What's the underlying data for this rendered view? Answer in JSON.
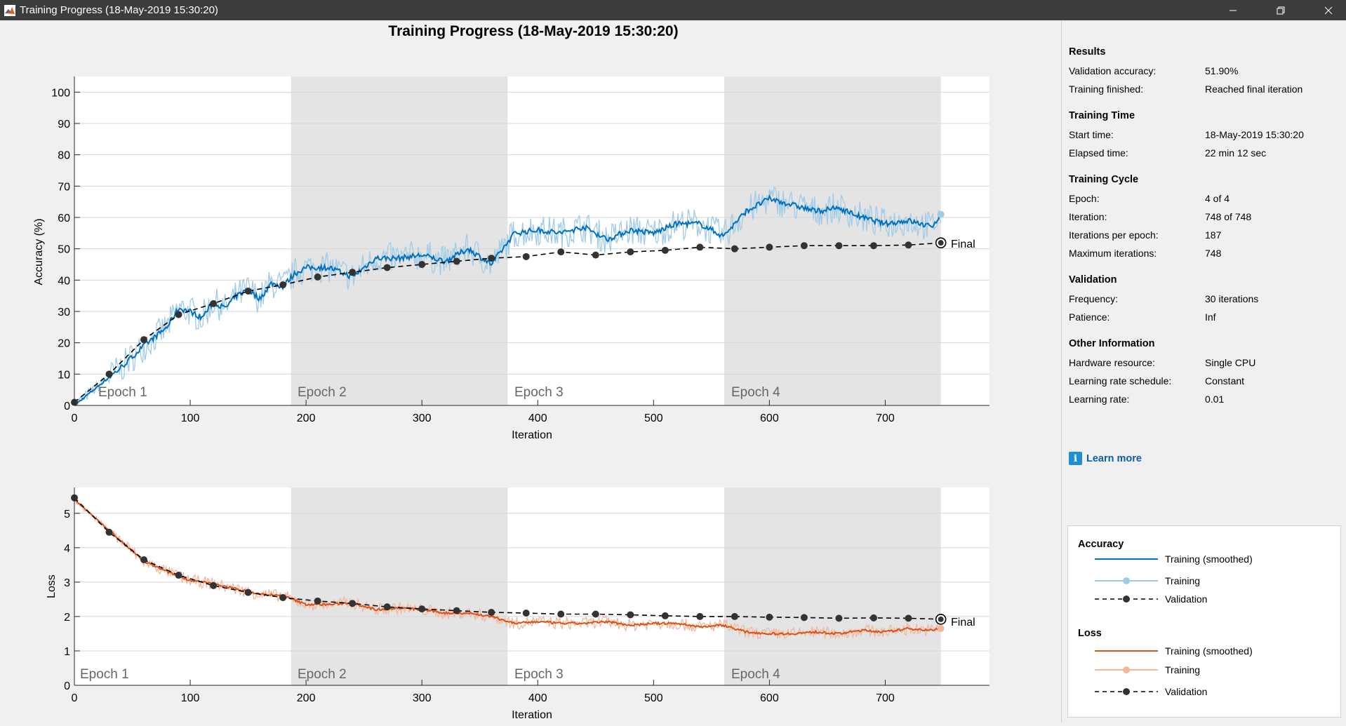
{
  "window": {
    "title": "Training Progress (18-May-2019 15:30:20)",
    "icon": "matlab-logo-icon"
  },
  "figure": {
    "title": "Training Progress (18-May-2019 15:30:20)"
  },
  "accuracy_plot": {
    "ylabel": "Accuracy (%)",
    "xlabel": "Iteration",
    "yticks": [
      "0",
      "10",
      "20",
      "30",
      "40",
      "50",
      "60",
      "70",
      "80",
      "90",
      "100"
    ],
    "xticks": [
      "0",
      "100",
      "200",
      "300",
      "400",
      "500",
      "600",
      "700"
    ],
    "epochs": [
      "Epoch 1",
      "Epoch 2",
      "Epoch 3",
      "Epoch 4"
    ],
    "final_label": "Final"
  },
  "loss_plot": {
    "ylabel": "Loss",
    "xlabel": "Iteration",
    "yticks": [
      "0",
      "1",
      "2",
      "3",
      "4",
      "5"
    ],
    "xticks": [
      "0",
      "100",
      "200",
      "300",
      "400",
      "500",
      "600",
      "700"
    ],
    "epochs": [
      "Epoch 1",
      "Epoch 2",
      "Epoch 3",
      "Epoch 4"
    ],
    "final_label": "Final"
  },
  "chart_data": [
    {
      "type": "line",
      "ylabel": "Accuracy (%)",
      "xlabel": "Iteration",
      "xlim": [
        0,
        790
      ],
      "ylim": [
        0,
        105
      ],
      "epoch_boundaries": [
        0,
        187,
        374,
        561,
        748
      ],
      "series": [
        {
          "name": "Validation",
          "x": [
            0,
            30,
            60,
            90,
            120,
            150,
            180,
            210,
            240,
            270,
            300,
            330,
            360,
            390,
            420,
            450,
            480,
            510,
            540,
            570,
            600,
            630,
            660,
            690,
            720,
            748
          ],
          "values": [
            1,
            10,
            21,
            29,
            32.5,
            36.5,
            38.5,
            41,
            42.5,
            44,
            45,
            46,
            47,
            47.5,
            49,
            48,
            49,
            49.5,
            50.5,
            50,
            50.5,
            51,
            51,
            51,
            51.2,
            51.9
          ]
        },
        {
          "name": "Training (smoothed)",
          "x": [
            0,
            20,
            40,
            60,
            80,
            90,
            100,
            110,
            120,
            130,
            140,
            150,
            160,
            170,
            180,
            190,
            200,
            220,
            240,
            260,
            280,
            300,
            320,
            340,
            360,
            380,
            400,
            420,
            440,
            460,
            480,
            500,
            520,
            540,
            560,
            570,
            580,
            600,
            620,
            640,
            660,
            680,
            700,
            720,
            740,
            748
          ],
          "values": [
            0,
            6,
            12,
            19,
            25,
            31,
            30,
            28,
            33,
            31,
            35,
            37,
            34,
            39,
            38,
            42,
            44,
            44,
            41,
            47,
            47,
            48,
            46,
            50,
            45,
            55,
            56,
            55,
            57,
            53,
            56,
            55,
            58,
            58,
            54,
            58,
            62,
            66,
            64,
            62,
            63,
            60,
            58,
            59,
            57,
            61
          ]
        }
      ]
    },
    {
      "type": "line",
      "ylabel": "Loss",
      "xlabel": "Iteration",
      "xlim": [
        0,
        790
      ],
      "ylim": [
        0,
        5.75
      ],
      "epoch_boundaries": [
        0,
        187,
        374,
        561,
        748
      ],
      "series": [
        {
          "name": "Validation",
          "x": [
            0,
            30,
            60,
            90,
            120,
            150,
            180,
            210,
            240,
            270,
            300,
            330,
            360,
            390,
            420,
            450,
            480,
            510,
            540,
            570,
            600,
            630,
            660,
            690,
            720,
            748
          ],
          "values": [
            5.45,
            4.45,
            3.65,
            3.2,
            2.9,
            2.7,
            2.55,
            2.45,
            2.38,
            2.28,
            2.22,
            2.17,
            2.12,
            2.1,
            2.07,
            2.07,
            2.05,
            2.02,
            2.0,
            2.0,
            1.98,
            1.97,
            1.95,
            1.96,
            1.95,
            1.92
          ]
        },
        {
          "name": "Training (smoothed)",
          "x": [
            0,
            20,
            40,
            60,
            80,
            100,
            120,
            140,
            160,
            180,
            200,
            220,
            240,
            260,
            280,
            300,
            320,
            340,
            360,
            380,
            400,
            420,
            440,
            460,
            480,
            500,
            520,
            540,
            560,
            580,
            600,
            620,
            640,
            660,
            680,
            700,
            720,
            740,
            748
          ],
          "values": [
            5.4,
            4.8,
            4.2,
            3.6,
            3.3,
            3.05,
            2.95,
            2.8,
            2.65,
            2.6,
            2.35,
            2.35,
            2.4,
            2.2,
            2.25,
            2.2,
            2.1,
            2.1,
            2.0,
            1.8,
            1.85,
            1.8,
            1.8,
            1.85,
            1.75,
            1.8,
            1.8,
            1.7,
            1.75,
            1.55,
            1.5,
            1.5,
            1.55,
            1.5,
            1.6,
            1.55,
            1.65,
            1.6,
            1.65
          ]
        }
      ]
    }
  ],
  "side": {
    "results": {
      "head": "Results",
      "rows": [
        {
          "label": "Validation accuracy:",
          "value": "51.90%"
        },
        {
          "label": "Training finished:",
          "value": "Reached final iteration"
        }
      ]
    },
    "time": {
      "head": "Training Time",
      "rows": [
        {
          "label": "Start time:",
          "value": "18-May-2019 15:30:20"
        },
        {
          "label": "Elapsed time:",
          "value": "22 min 12 sec"
        }
      ]
    },
    "cycle": {
      "head": "Training Cycle",
      "rows": [
        {
          "label": "Epoch:",
          "value": "4 of 4"
        },
        {
          "label": "Iteration:",
          "value": "748 of 748"
        },
        {
          "label": "Iterations per epoch:",
          "value": "187"
        },
        {
          "label": "Maximum iterations:",
          "value": "748"
        }
      ]
    },
    "validation": {
      "head": "Validation",
      "rows": [
        {
          "label": "Frequency:",
          "value": "30 iterations"
        },
        {
          "label": "Patience:",
          "value": "Inf"
        }
      ]
    },
    "other": {
      "head": "Other Information",
      "rows": [
        {
          "label": "Hardware resource:",
          "value": "Single CPU"
        },
        {
          "label": "Learning rate schedule:",
          "value": "Constant"
        },
        {
          "label": "Learning rate:",
          "value": "0.01"
        }
      ]
    },
    "learn_more": "Learn more"
  },
  "legend": {
    "accuracy_head": "Accuracy",
    "loss_head": "Loss",
    "items": {
      "acc_smoothed": "Training (smoothed)",
      "acc_training": "Training",
      "acc_validation": "Validation",
      "loss_smoothed": "Training (smoothed)",
      "loss_training": "Training",
      "loss_validation": "Validation"
    }
  },
  "colors": {
    "acc_smoothed": "#0072bd",
    "acc_raw": "#9fcbe9",
    "loss_smoothed": "#d95319",
    "loss_raw": "#f3b79c",
    "validation": "#000000",
    "epoch_shade": "#e4e4e4"
  }
}
